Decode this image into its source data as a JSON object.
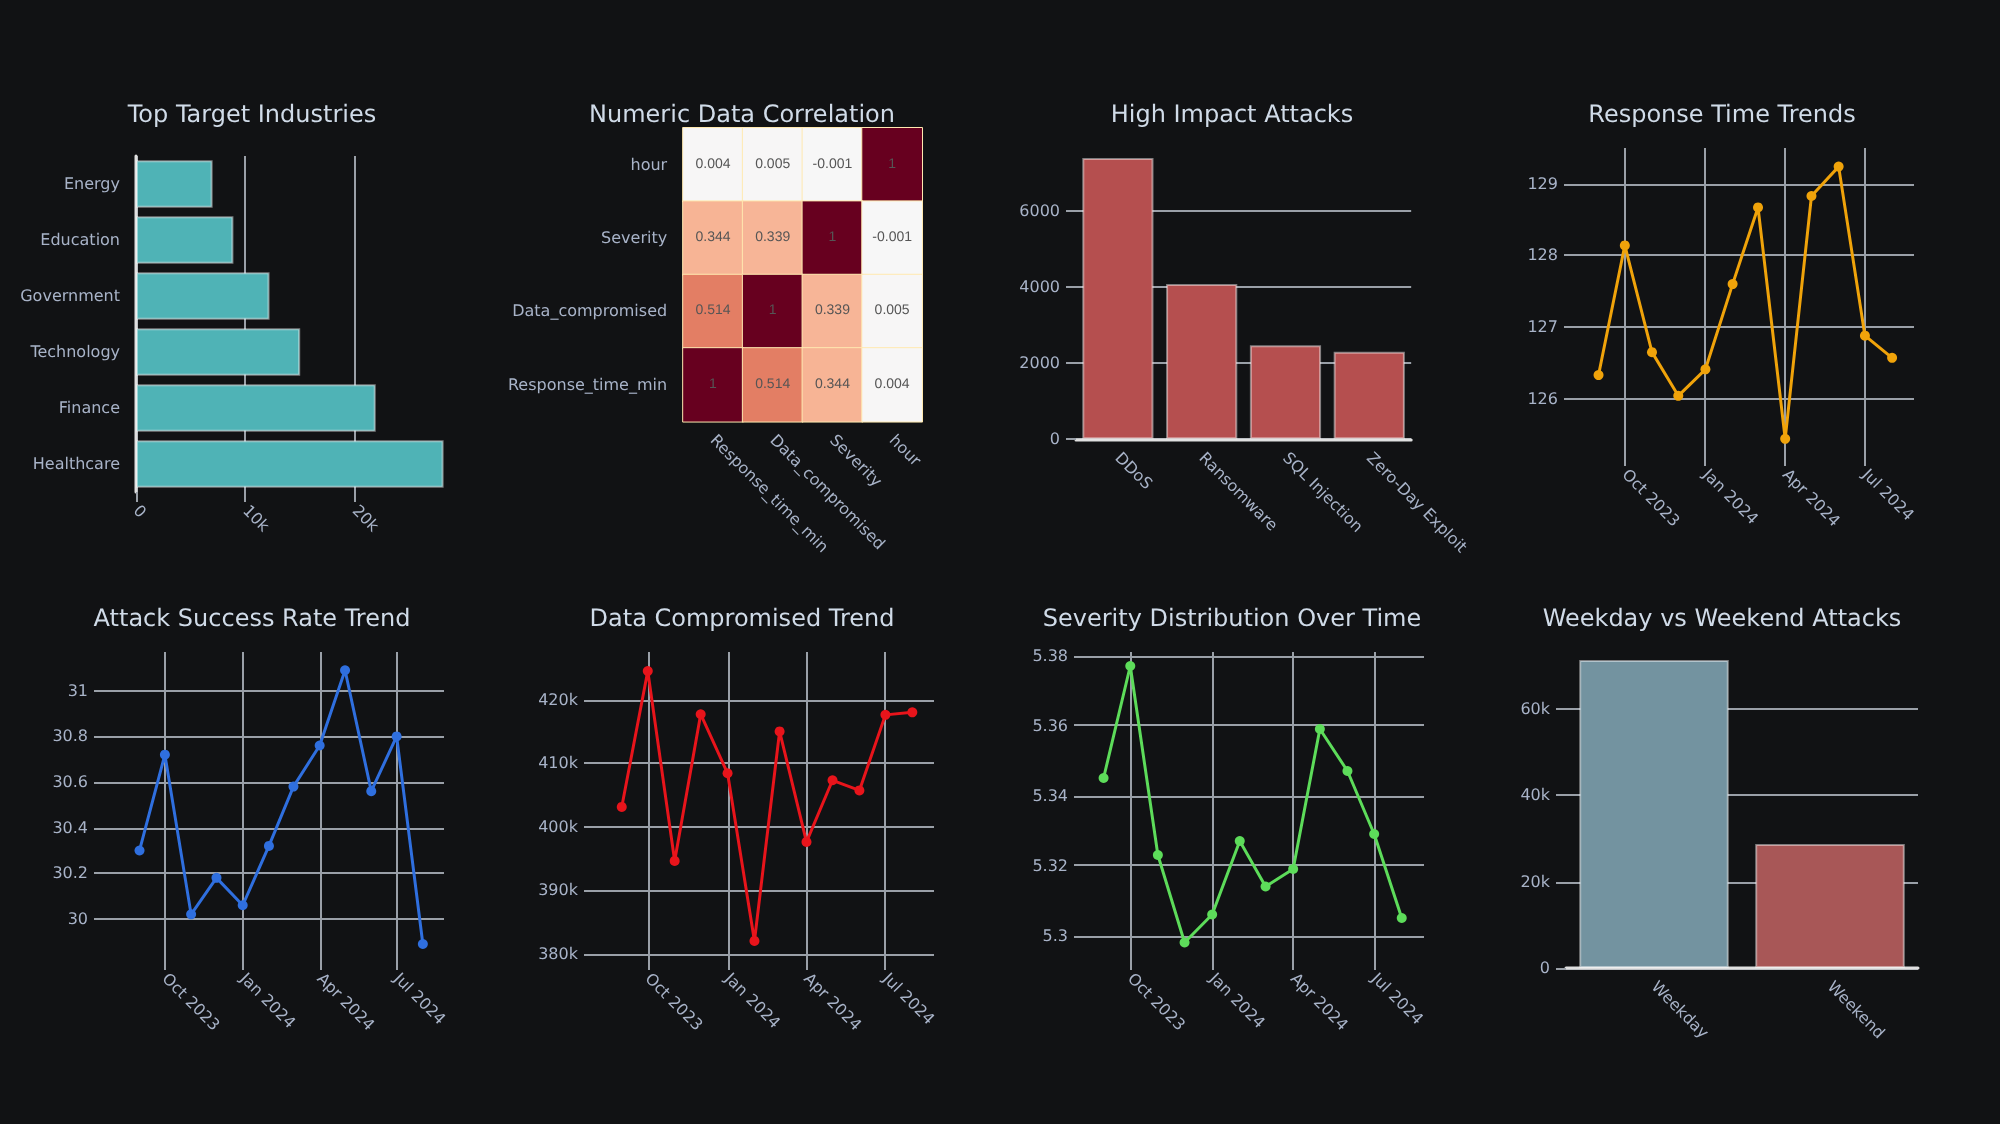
{
  "chart_data": [
    {
      "type": "bar",
      "title": "Top Target Industries",
      "orientation": "horizontal",
      "categories": [
        "Energy",
        "Education",
        "Government",
        "Technology",
        "Finance",
        "Healthcare"
      ],
      "values": [
        7000,
        8900,
        12200,
        15000,
        21900,
        28100
      ],
      "color": "#4fb3b6",
      "xlim": [
        0,
        28500
      ],
      "xticks": [
        0,
        {
          "value": 10000,
          "label": "10k"
        },
        {
          "value": 20000,
          "label": "20k"
        }
      ],
      "grid": "x"
    },
    {
      "type": "heatmap",
      "title": "Numeric Data Correlation",
      "categories": [
        "Response_time_min",
        "Data_compromised",
        "Severity",
        "hour"
      ],
      "y_categories": [
        "hour",
        "Severity",
        "Data_compromised",
        "Response_time_min"
      ],
      "cells": [
        [
          0.004,
          0.005,
          -0.001,
          1
        ],
        [
          0.344,
          0.339,
          1,
          -0.001
        ],
        [
          0.514,
          1,
          0.339,
          0.005
        ],
        [
          1,
          0.514,
          0.344,
          0.004
        ]
      ],
      "data_labels": true
    },
    {
      "type": "bar",
      "title": "High Impact Attacks",
      "categories": [
        "DDoS",
        "Ransomware",
        "SQL Injection",
        "Zero-Day Exploit"
      ],
      "values": [
        7400,
        4080,
        2470,
        2300
      ],
      "color": "#b54f4f",
      "ylim": [
        0,
        7450
      ],
      "yticks": [
        0,
        2000,
        4000,
        6000
      ],
      "grid": "y"
    },
    {
      "type": "line",
      "title": "Response Time Trends",
      "x": [
        "2023-09",
        "2023-10",
        "2023-11",
        "2023-12",
        "2024-01",
        "2024-02",
        "2024-03",
        "2024-04",
        "2024-05",
        "2024-06",
        "2024-07",
        "2024-08"
      ],
      "values": [
        126.33,
        128.14,
        126.65,
        126.04,
        126.41,
        127.6,
        128.67,
        125.44,
        128.83,
        129.24,
        126.88,
        126.57
      ],
      "color": "#f0a30a",
      "xlim": [
        "2023-08-04",
        "2024-08-26"
      ],
      "xticks": [
        {
          "value": "2023-10",
          "label": "Oct 2023"
        },
        {
          "value": "2024-01",
          "label": "Jan 2024"
        },
        {
          "value": "2024-04",
          "label": "Apr 2024"
        },
        {
          "value": "2024-07",
          "label": "Jul 2024"
        }
      ],
      "ylim": [
        125.2,
        129.5
      ],
      "yticks": [
        126,
        127,
        128,
        129
      ],
      "grid": true,
      "marker": "circle",
      "line_style": "solid"
    },
    {
      "type": "line",
      "title": "Attack Success Rate Trend",
      "x": [
        "2023-09",
        "2023-10",
        "2023-11",
        "2023-12",
        "2024-01",
        "2024-02",
        "2024-03",
        "2024-04",
        "2024-05",
        "2024-06",
        "2024-07",
        "2024-08"
      ],
      "values": [
        30.3,
        30.72,
        30.02,
        30.18,
        30.06,
        30.32,
        30.58,
        30.76,
        31.09,
        30.56,
        30.8,
        29.89
      ],
      "color": "#2f6fdf",
      "xlim": [
        "2023-07-21",
        "2024-08-26"
      ],
      "xticks": [
        {
          "value": "2023-10",
          "label": "Oct 2023"
        },
        {
          "value": "2024-01",
          "label": "Jan 2024"
        },
        {
          "value": "2024-04",
          "label": "Apr 2024"
        },
        {
          "value": "2024-07",
          "label": "Jul 2024"
        }
      ],
      "ylim": [
        29.82,
        31.17
      ],
      "yticks": [
        30,
        30.2,
        30.4,
        30.6,
        30.8,
        31
      ],
      "grid": true,
      "marker": "circle",
      "line_style": "solid"
    },
    {
      "type": "line",
      "title": "Data Compromised Trend",
      "x": [
        "2023-09",
        "2023-10",
        "2023-11",
        "2023-12",
        "2024-01",
        "2024-02",
        "2024-03",
        "2024-04",
        "2024-05",
        "2024-06",
        "2024-07",
        "2024-08"
      ],
      "values": [
        403100,
        424500,
        394600,
        417700,
        408400,
        382000,
        415000,
        397600,
        407300,
        405700,
        417600,
        418000
      ],
      "color": "#e8141b",
      "xlim": [
        "2023-07-31",
        "2024-08-26"
      ],
      "xticks": [
        {
          "value": "2023-10",
          "label": "Oct 2023"
        },
        {
          "value": "2024-01",
          "label": "Jan 2024"
        },
        {
          "value": "2024-04",
          "label": "Apr 2024"
        },
        {
          "value": "2024-07",
          "label": "Jul 2024"
        }
      ],
      "ylim": [
        379000,
        427500
      ],
      "yticks": [
        {
          "value": 380000,
          "label": "380k"
        },
        {
          "value": 390000,
          "label": "390k"
        },
        {
          "value": 400000,
          "label": "400k"
        },
        {
          "value": 410000,
          "label": "410k"
        },
        {
          "value": 420000,
          "label": "420k"
        }
      ],
      "grid": true,
      "marker": "circle",
      "line_style": "solid"
    },
    {
      "type": "line",
      "title": "Severity Distribution Over Time",
      "x": [
        "2023-09",
        "2023-10",
        "2023-11",
        "2023-12",
        "2024-01",
        "2024-02",
        "2024-03",
        "2024-04",
        "2024-05",
        "2024-06",
        "2024-07",
        "2024-08"
      ],
      "values": [
        5.345,
        5.377,
        5.323,
        5.298,
        5.306,
        5.327,
        5.314,
        5.319,
        5.359,
        5.347,
        5.329,
        5.305
      ],
      "color": "#5ddc5a",
      "xlim": [
        "2023-08-10",
        "2024-08-26"
      ],
      "xticks": [
        {
          "value": "2023-10",
          "label": "Oct 2023"
        },
        {
          "value": "2024-01",
          "label": "Jan 2024"
        },
        {
          "value": "2024-04",
          "label": "Apr 2024"
        },
        {
          "value": "2024-07",
          "label": "Jul 2024"
        }
      ],
      "ylim": [
        5.293,
        5.381
      ],
      "yticks": [
        5.3,
        5.32,
        5.34,
        5.36,
        5.38
      ],
      "grid": true,
      "marker": "circle",
      "line_style": "solid"
    },
    {
      "type": "bar",
      "title": "Weekday vs Weekend Attacks",
      "categories": [
        "Weekday",
        "Weekend"
      ],
      "values": [
        71300,
        28700
      ],
      "colors": [
        "#7393a0",
        "#a85757"
      ],
      "ylim": [
        0,
        71300
      ],
      "yticks": [
        0,
        {
          "value": 20000,
          "label": "20k"
        },
        {
          "value": 40000,
          "label": "40k"
        },
        {
          "value": 60000,
          "label": "60k"
        }
      ],
      "grid": "y"
    }
  ]
}
